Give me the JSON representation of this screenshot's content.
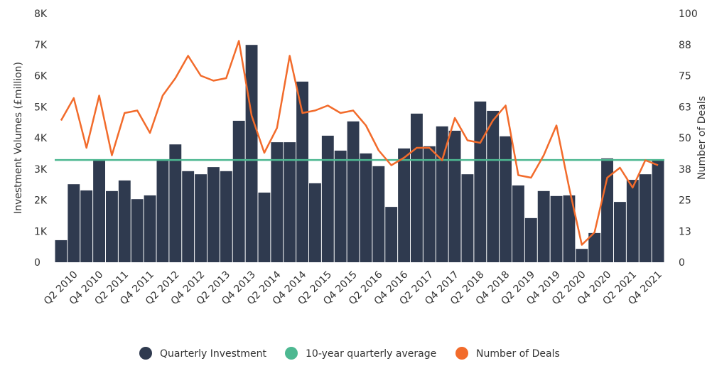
{
  "chart_data": {
    "type": "bar_line",
    "y_label": "Investment Volumes (£million)",
    "y2_label": "Number of Deals",
    "categories": [
      null,
      "Q2 2010",
      null,
      "Q4 2010",
      null,
      "Q2 2011",
      null,
      "Q4 2011",
      null,
      "Q2 2012",
      null,
      "Q4 2012",
      null,
      "Q2 2013",
      null,
      "Q4 2013",
      null,
      "Q2 2014",
      null,
      "Q4 2014",
      null,
      "Q2 2015",
      null,
      "Q4 2015",
      null,
      "Q2 2016",
      null,
      "Q4 2016",
      null,
      "Q2 2017",
      null,
      "Q4 2017",
      null,
      "Q2 2018",
      null,
      "Q4 2018",
      null,
      "Q2 2019",
      null,
      "Q4 2019",
      null,
      "Q2 2020",
      null,
      "Q4 2020",
      null,
      "Q2 2021",
      null,
      "Q4 2021"
    ],
    "series": [
      {
        "name": "Quarterly Investment",
        "color": "#2f3a4f",
        "kind": "bar",
        "values": [
          710,
          2510,
          2310,
          3270,
          2290,
          2630,
          2030,
          2150,
          3310,
          3790,
          2930,
          2830,
          3060,
          2930,
          4550,
          6990,
          2240,
          3860,
          3860,
          5810,
          2540,
          4070,
          3590,
          4530,
          3500,
          3090,
          1780,
          3660,
          4780,
          3730,
          4370,
          4230,
          2830,
          5170,
          4870,
          4050,
          2470,
          1420,
          2290,
          2130,
          2150,
          430,
          940,
          3340,
          1940,
          2650,
          2830,
          3310
        ]
      },
      {
        "name": "10-year quarterly average",
        "color": "#4db891",
        "kind": "hline",
        "value": 3290
      },
      {
        "name": "Number of Deals",
        "color": "#f26b2b",
        "kind": "line",
        "axis": "y2",
        "values": [
          57,
          66,
          46,
          67,
          43,
          60,
          61,
          52,
          67,
          74,
          83,
          75,
          73,
          74,
          89,
          59,
          44,
          54,
          83,
          60,
          61,
          63,
          60,
          61,
          55,
          45,
          39,
          42,
          46,
          46,
          41,
          58,
          49,
          48,
          57,
          63,
          35,
          34,
          43,
          55,
          30,
          7,
          12,
          34,
          38,
          30,
          41,
          39
        ]
      }
    ],
    "ylim": [
      0,
      8000
    ],
    "yticks": [
      0,
      {
        "value": 1000,
        "label": "1K"
      },
      {
        "value": 2000,
        "label": "2K"
      },
      {
        "value": 3000,
        "label": "3K"
      },
      {
        "value": 4000,
        "label": "4K"
      },
      {
        "value": 5000,
        "label": "5K"
      },
      {
        "value": 6000,
        "label": "6K"
      },
      {
        "value": 7000,
        "label": "7K"
      },
      {
        "value": 8000,
        "label": "8K"
      }
    ],
    "y2lim": [
      0,
      100
    ],
    "y2ticks": [
      0,
      {
        "value": 12.5,
        "label": "13"
      },
      25,
      {
        "value": 37.5,
        "label": "38"
      },
      50,
      {
        "value": 62.5,
        "label": "63"
      },
      75,
      {
        "value": 87.5,
        "label": "88"
      },
      100
    ],
    "legend": "bottom"
  }
}
